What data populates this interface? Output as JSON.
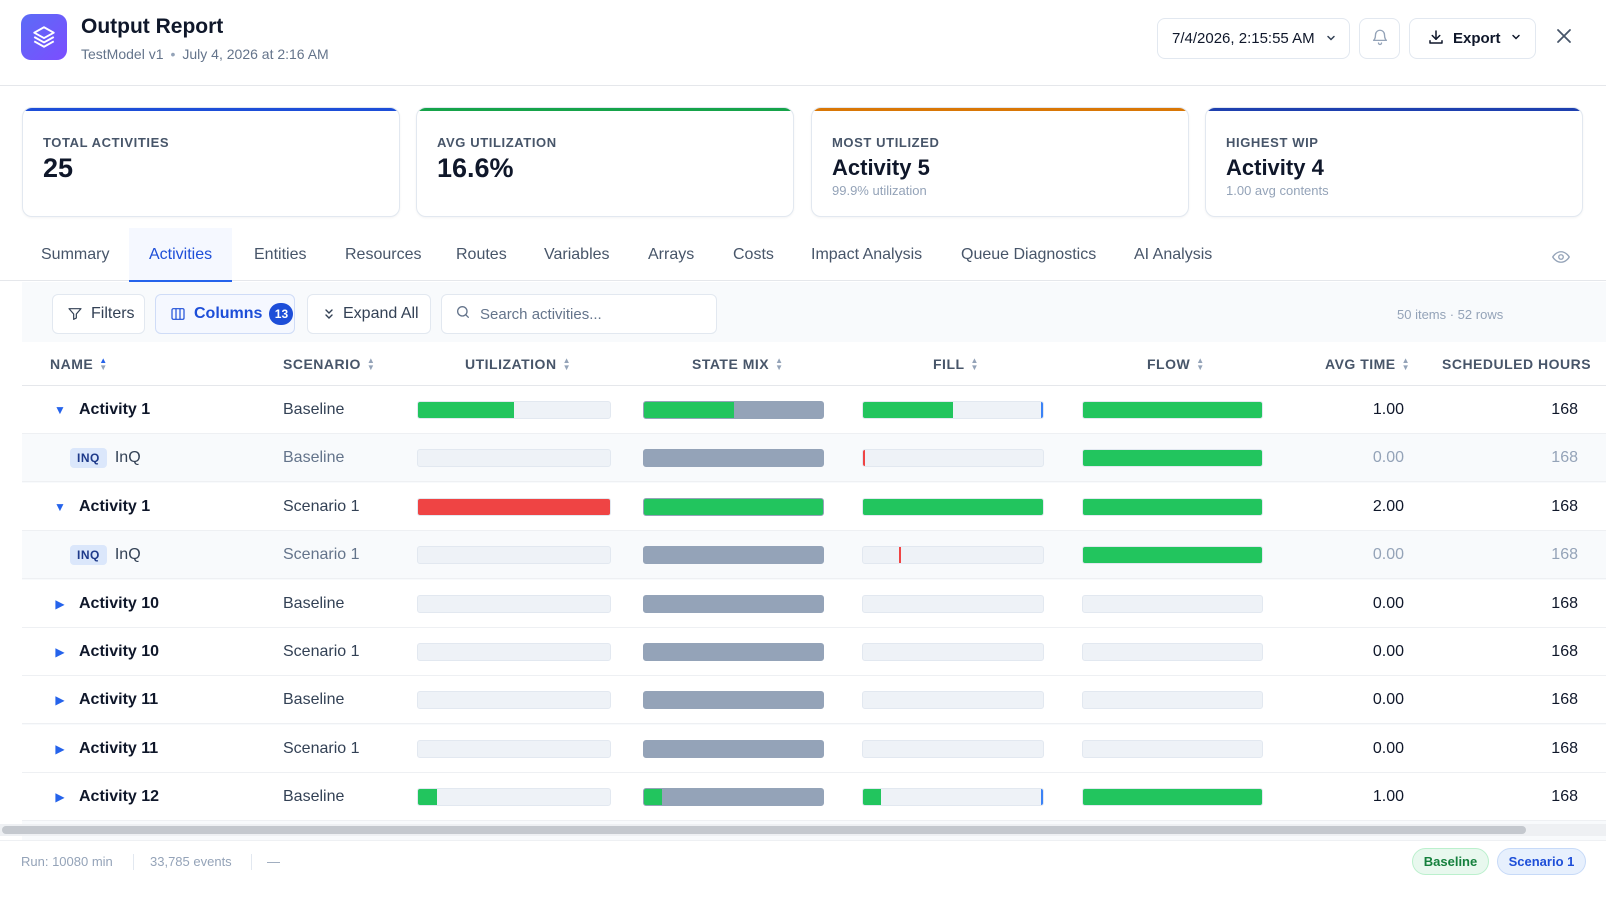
{
  "header": {
    "title": "Output Report",
    "model": "TestModel v1",
    "run_date": "July 4, 2026 at 2:16 AM",
    "date_selector": "7/4/2026, 2:15:55 AM",
    "export_label": "Export"
  },
  "cards": [
    {
      "label": "TOTAL ACTIVITIES",
      "value": "25",
      "sub": "",
      "accent": "#1d4ed8"
    },
    {
      "label": "AVG UTILIZATION",
      "value": "16.6%",
      "sub": "",
      "accent": "#16a34a"
    },
    {
      "label": "MOST UTILIZED",
      "value": "Activity 5",
      "sub": "99.9% utilization",
      "accent": "#d97706"
    },
    {
      "label": "HIGHEST WIP",
      "value": "Activity 4",
      "sub": "1.00 avg contents",
      "accent": "#1e40af"
    }
  ],
  "tabs": [
    "Summary",
    "Activities",
    "Entities",
    "Resources",
    "Routes",
    "Variables",
    "Arrays",
    "Costs",
    "Impact Analysis",
    "Queue Diagnostics",
    "AI Analysis"
  ],
  "active_tab": "Activities",
  "toolbar": {
    "filters_label": "Filters",
    "columns_label": "Columns",
    "columns_count": "13",
    "expand_label": "Expand All",
    "search_placeholder": "Search activities...",
    "items_count": "50 items · 52 rows"
  },
  "columns": [
    "NAME",
    "SCENARIO",
    "UTILIZATION",
    "STATE MIX",
    "FILL",
    "FLOW",
    "AVG TIME",
    "SCHEDULED HOURS"
  ],
  "colors": {
    "green": "#22c55e",
    "red": "#ef4444",
    "gray": "#94a3b8",
    "blue_marker": "#3b82f6",
    "accent": "#2563eb"
  },
  "rows": [
    {
      "type": "parent",
      "expanded": true,
      "name": "Activity 1",
      "scenario": "Baseline",
      "util": 0.5,
      "util_color": "green",
      "state_busy": 0.5,
      "fill": 0.5,
      "fill_marker": "blue",
      "flow": 1,
      "avg_time": "1.00",
      "scheduled": "168"
    },
    {
      "type": "child",
      "badge": "INQ",
      "name": "InQ",
      "scenario": "Baseline",
      "util": 0,
      "util_color": "green",
      "state_busy": 0,
      "fill": 0,
      "fill_marker": "red-start",
      "flow": 1,
      "avg_time": "0.00",
      "scheduled": "168"
    },
    {
      "type": "parent",
      "expanded": true,
      "name": "Activity 1",
      "scenario": "Scenario 1",
      "util": 1,
      "util_color": "red",
      "state_busy": 1,
      "fill": 1,
      "fill_marker": "none",
      "flow": 1,
      "avg_time": "2.00",
      "scheduled": "168"
    },
    {
      "type": "child",
      "badge": "INQ",
      "name": "InQ",
      "scenario": "Scenario 1",
      "util": 0,
      "util_color": "green",
      "state_busy": 0,
      "fill": 0,
      "fill_marker": "red-mid",
      "flow": 1,
      "avg_time": "0.00",
      "scheduled": "168"
    },
    {
      "type": "parent",
      "expanded": false,
      "name": "Activity 10",
      "scenario": "Baseline",
      "util": 0,
      "util_color": "green",
      "state_busy": 0,
      "fill": 0,
      "fill_marker": "none",
      "flow": 0,
      "avg_time": "0.00",
      "scheduled": "168"
    },
    {
      "type": "parent",
      "expanded": false,
      "name": "Activity 10",
      "scenario": "Scenario 1",
      "util": 0,
      "util_color": "green",
      "state_busy": 0,
      "fill": 0,
      "fill_marker": "none",
      "flow": 0,
      "avg_time": "0.00",
      "scheduled": "168"
    },
    {
      "type": "parent",
      "expanded": false,
      "name": "Activity 11",
      "scenario": "Baseline",
      "util": 0,
      "util_color": "green",
      "state_busy": 0,
      "fill": 0,
      "fill_marker": "none",
      "flow": 0,
      "avg_time": "0.00",
      "scheduled": "168"
    },
    {
      "type": "parent",
      "expanded": false,
      "name": "Activity 11",
      "scenario": "Scenario 1",
      "util": 0,
      "util_color": "green",
      "state_busy": 0,
      "fill": 0,
      "fill_marker": "none",
      "flow": 0,
      "avg_time": "0.00",
      "scheduled": "168"
    },
    {
      "type": "parent",
      "expanded": false,
      "name": "Activity 12",
      "scenario": "Baseline",
      "util": 0.1,
      "util_color": "green",
      "state_busy": 0.1,
      "fill": 0.1,
      "fill_marker": "blue",
      "flow": 1,
      "avg_time": "1.00",
      "scheduled": "168"
    }
  ],
  "footer": {
    "run": "Run: 10080 min",
    "events": "33,785 events",
    "dash": "—",
    "legend": [
      "Baseline",
      "Scenario 1"
    ]
  }
}
